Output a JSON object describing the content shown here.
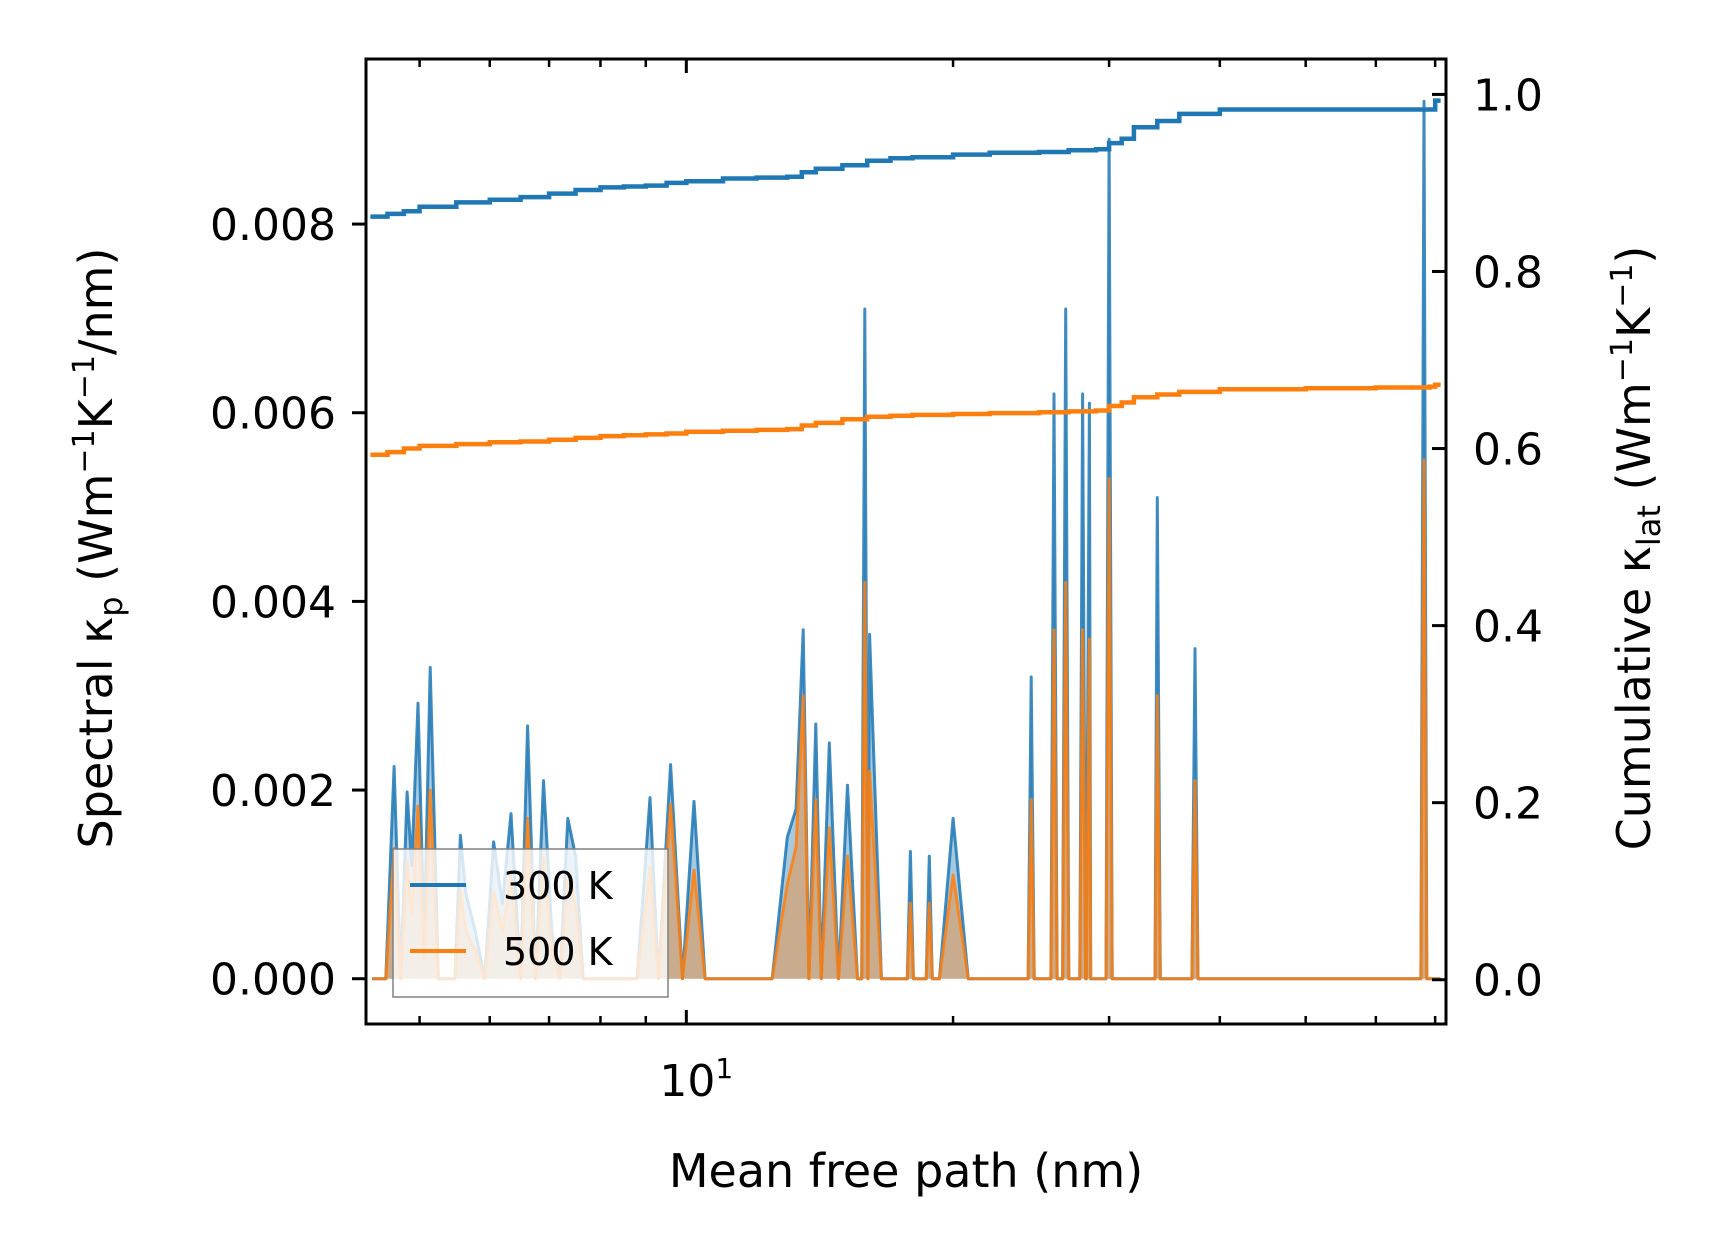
{
  "chart_data": {
    "type": "line",
    "x_scale": "log",
    "xlabel": "Mean free path (nm)",
    "xlim": [
      4.35,
      72
    ],
    "x_ticks": [
      {
        "value": 10,
        "base": "10",
        "exp": "1"
      }
    ],
    "x_minor_ticks": [
      5,
      6,
      7,
      8,
      9,
      20,
      30,
      40,
      50,
      60,
      70
    ],
    "left_axis": {
      "label_parts": {
        "main": "Spectral κ",
        "sub": "p",
        "open": " (Wm",
        "exp1": "−1",
        "mid": "K",
        "exp2": "−1",
        "close": "/nm)"
      },
      "ylim": [
        -0.00048,
        0.00975
      ],
      "ticks": [
        {
          "value": 0.0,
          "label": "0.000"
        },
        {
          "value": 0.002,
          "label": "0.002"
        },
        {
          "value": 0.004,
          "label": "0.004"
        },
        {
          "value": 0.006,
          "label": "0.006"
        },
        {
          "value": 0.008,
          "label": "0.008"
        }
      ]
    },
    "right_axis": {
      "label_parts": {
        "main": "Cumulative κ",
        "sub": "lat",
        "open": " (Wm",
        "exp1": "−1",
        "mid": "K",
        "exp2": "−1",
        "close": ")"
      },
      "ylim": [
        -0.05,
        1.04
      ],
      "ticks": [
        {
          "value": 0.0,
          "label": "0.0"
        },
        {
          "value": 0.2,
          "label": "0.2"
        },
        {
          "value": 0.4,
          "label": "0.4"
        },
        {
          "value": 0.6,
          "label": "0.6"
        },
        {
          "value": 0.8,
          "label": "0.8"
        },
        {
          "value": 1.0,
          "label": "1.0"
        }
      ]
    },
    "legend": {
      "position": "lower-left",
      "entries": [
        {
          "label": "300 K",
          "color": "#1f77b4"
        },
        {
          "label": "500 K",
          "color": "#ff7f0e"
        }
      ]
    },
    "series": [
      {
        "name": "300 K cumulative",
        "axis": "right",
        "color": "#1f77b4",
        "x": [
          4.4,
          4.6,
          4.8,
          5.0,
          5.5,
          6.0,
          6.5,
          7.0,
          7.5,
          8.0,
          8.5,
          9.0,
          9.5,
          10.0,
          11.0,
          12.0,
          13.0,
          13.5,
          14.0,
          15.0,
          16.0,
          17.0,
          18.0,
          20.0,
          22.0,
          25.0,
          27.0,
          29.0,
          30.0,
          31.0,
          32.0,
          34.0,
          36.0,
          40.0,
          50.0,
          60.0,
          69.0,
          70.0,
          71.0
        ],
        "y": [
          0.862,
          0.865,
          0.868,
          0.873,
          0.878,
          0.881,
          0.884,
          0.888,
          0.892,
          0.895,
          0.896,
          0.897,
          0.9,
          0.902,
          0.905,
          0.906,
          0.907,
          0.912,
          0.916,
          0.92,
          0.925,
          0.928,
          0.929,
          0.932,
          0.934,
          0.935,
          0.937,
          0.938,
          0.945,
          0.95,
          0.963,
          0.97,
          0.978,
          0.983,
          0.983,
          0.983,
          0.983,
          0.993,
          0.993
        ]
      },
      {
        "name": "500 K cumulative",
        "axis": "right",
        "color": "#ff7f0e",
        "x": [
          4.4,
          4.6,
          4.8,
          5.0,
          5.5,
          6.0,
          6.5,
          7.0,
          7.5,
          8.0,
          8.5,
          9.0,
          9.5,
          10.0,
          11.0,
          12.0,
          13.0,
          13.5,
          14.0,
          15.0,
          16.0,
          17.0,
          18.0,
          20.0,
          22.0,
          25.0,
          27.0,
          29.0,
          30.0,
          31.0,
          32.0,
          34.0,
          36.0,
          40.0,
          50.0,
          60.0,
          69.0,
          70.0,
          71.0
        ],
        "y": [
          0.593,
          0.596,
          0.6,
          0.603,
          0.605,
          0.607,
          0.608,
          0.61,
          0.612,
          0.614,
          0.615,
          0.616,
          0.617,
          0.619,
          0.62,
          0.621,
          0.622,
          0.626,
          0.629,
          0.633,
          0.636,
          0.637,
          0.638,
          0.639,
          0.64,
          0.641,
          0.642,
          0.643,
          0.648,
          0.652,
          0.658,
          0.661,
          0.664,
          0.667,
          0.668,
          0.669,
          0.67,
          0.672,
          0.672
        ]
      },
      {
        "name": "300 K spectral",
        "axis": "left",
        "color": "#1f77b4",
        "x": [
          4.42,
          4.58,
          4.68,
          4.76,
          4.84,
          4.9,
          4.98,
          5.06,
          5.14,
          5.25,
          5.36,
          5.48,
          5.56,
          5.64,
          5.78,
          5.92,
          6.06,
          6.2,
          6.34,
          6.5,
          6.62,
          6.76,
          6.9,
          7.05,
          7.2,
          7.35,
          7.5,
          7.65,
          7.8,
          7.95,
          8.1,
          8.4,
          8.6,
          8.8,
          9.1,
          9.3,
          9.6,
          9.9,
          10.2,
          10.5,
          10.75,
          11.0,
          12.5,
          13.0,
          13.3,
          13.55,
          13.75,
          14.0,
          14.2,
          14.5,
          14.85,
          15.2,
          15.6,
          16.1,
          16.6,
          17.3,
          18.3,
          19.3,
          20.0,
          20.8,
          21.8,
          27.8,
          28.6,
          30.8,
          31.8,
          32.8,
          33.8,
          34.5,
          35.5,
          36.1,
          36.8,
          38.0,
          39.5,
          40.5,
          45.0,
          46.2,
          47.3,
          52.0,
          53.0,
          54.0,
          68.5,
          69.8,
          71.0
        ],
        "y": [
          0.0,
          0.0,
          0.00225,
          0.0,
          0.00198,
          0.0012,
          0.00292,
          0.0004,
          0.0033,
          0.0,
          0.0,
          0.0,
          0.00152,
          0.0009,
          0.0005,
          0.0,
          0.00145,
          0.0008,
          0.00175,
          0.0,
          0.00268,
          0.0,
          0.0021,
          0.0005,
          0.0,
          0.0017,
          0.0013,
          0.0,
          0.0,
          0.0,
          0.0,
          0.0,
          0.0,
          0.0,
          0.00192,
          0.0,
          0.00227,
          0.0,
          0.00188,
          0.0,
          0.0,
          0.0,
          0.0,
          0.0015,
          0.0018,
          0.0037,
          0.0,
          0.0027,
          0.0,
          0.0025,
          0.0,
          0.00205,
          0.0,
          0.00365,
          0.0,
          0.0,
          0.0,
          0.0,
          0.0017,
          0.0,
          0.0,
          0.0,
          0.0,
          0.0,
          0.0,
          0.0,
          0.0,
          0.0,
          0.0,
          0.0,
          0.0,
          0.0,
          0.0,
          0.0,
          0.0,
          0.0,
          0.0,
          0.0,
          0.0,
          0.0,
          0.0,
          0.0,
          0.0
        ]
      },
      {
        "name": "500 K spectral",
        "axis": "left",
        "color": "#ff7f0e",
        "x": [
          4.42,
          4.58,
          4.68,
          4.76,
          4.84,
          4.9,
          4.98,
          5.06,
          5.14,
          5.25,
          5.36,
          5.48,
          5.56,
          5.64,
          5.78,
          5.92,
          6.06,
          6.2,
          6.34,
          6.5,
          6.62,
          6.76,
          6.9,
          7.05,
          7.2,
          7.35,
          7.5,
          7.65,
          7.8,
          7.95,
          8.1,
          8.4,
          8.6,
          8.8,
          9.1,
          9.3,
          9.6,
          9.9,
          10.2,
          10.5,
          10.75,
          11.0,
          12.5,
          13.0,
          13.3,
          13.55,
          13.75,
          14.0,
          14.2,
          14.5,
          14.85,
          15.2,
          15.6,
          16.1,
          16.6,
          17.3,
          18.3,
          19.3,
          20.0,
          20.8,
          21.8,
          27.8,
          28.6,
          30.8,
          31.8,
          32.8,
          33.8,
          34.5,
          35.5,
          36.1,
          36.8,
          38.0,
          39.5,
          40.5,
          45.0,
          46.2,
          47.3,
          52.0,
          53.0,
          54.0,
          68.5,
          69.8,
          71.0
        ],
        "y": [
          0.0,
          0.0,
          0.00138,
          0.0,
          0.00125,
          0.0007,
          0.00183,
          0.0002,
          0.002,
          0.0,
          0.0,
          0.0,
          0.00095,
          0.0005,
          0.0003,
          0.0,
          0.00092,
          0.0005,
          0.0011,
          0.0,
          0.0017,
          0.0,
          0.0013,
          0.0003,
          0.0,
          0.0011,
          0.0008,
          0.0,
          0.0,
          0.0,
          0.0,
          0.0,
          0.0,
          0.0,
          0.00118,
          0.0,
          0.00185,
          0.0,
          0.00115,
          0.0,
          0.0,
          0.0,
          0.0,
          0.001,
          0.0014,
          0.003,
          0.0,
          0.0019,
          0.0,
          0.0016,
          0.0,
          0.0013,
          0.0,
          0.0022,
          0.0,
          0.0,
          0.0,
          0.0,
          0.0011,
          0.0,
          0.0,
          0.0,
          0.0,
          0.0,
          0.0,
          0.0,
          0.0,
          0.0,
          0.0,
          0.0,
          0.0,
          0.0,
          0.0,
          0.0,
          0.0,
          0.0,
          0.0,
          0.0,
          0.0,
          0.0,
          0.0,
          0.0,
          0.0
        ]
      }
    ],
    "spikes_300K": [
      {
        "x": 15.9,
        "y": 0.0071
      },
      {
        "x": 17.9,
        "y": 0.00135
      },
      {
        "x": 18.8,
        "y": 0.0013
      },
      {
        "x": 24.5,
        "y": 0.0032
      },
      {
        "x": 26.0,
        "y": 0.0062
      },
      {
        "x": 26.8,
        "y": 0.0071
      },
      {
        "x": 28.0,
        "y": 0.0062
      },
      {
        "x": 28.5,
        "y": 0.0061
      },
      {
        "x": 30.0,
        "y": 0.0089
      },
      {
        "x": 34.0,
        "y": 0.0051
      },
      {
        "x": 37.5,
        "y": 0.0035
      },
      {
        "x": 68.0,
        "y": 0.0093
      }
    ],
    "spikes_500K": [
      {
        "x": 15.9,
        "y": 0.0042
      },
      {
        "x": 17.9,
        "y": 0.0008
      },
      {
        "x": 18.8,
        "y": 0.0008
      },
      {
        "x": 24.5,
        "y": 0.0019
      },
      {
        "x": 26.0,
        "y": 0.0037
      },
      {
        "x": 26.8,
        "y": 0.0042
      },
      {
        "x": 28.0,
        "y": 0.0037
      },
      {
        "x": 28.5,
        "y": 0.0036
      },
      {
        "x": 30.0,
        "y": 0.0053
      },
      {
        "x": 34.0,
        "y": 0.003
      },
      {
        "x": 37.5,
        "y": 0.0021
      },
      {
        "x": 68.0,
        "y": 0.0055
      }
    ]
  }
}
